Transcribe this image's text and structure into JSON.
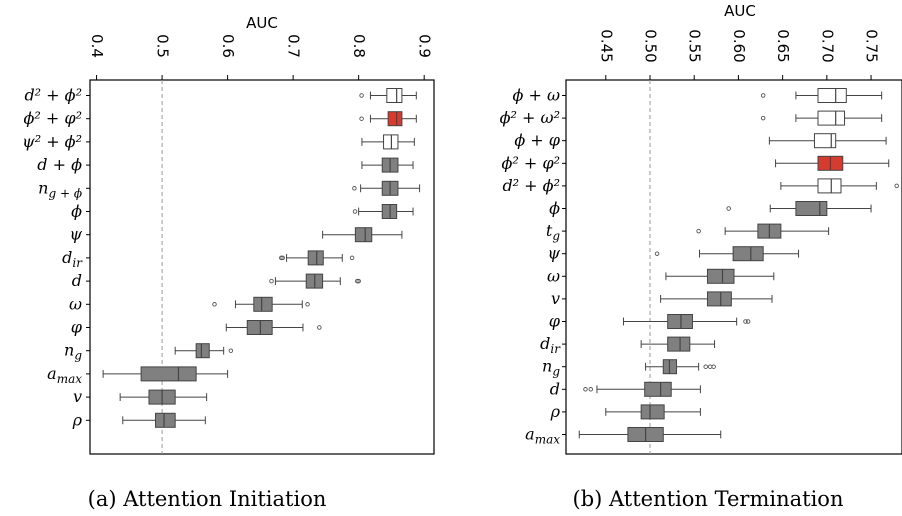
{
  "captions": [
    "(a) Attention Initiation",
    "(b) Attention Termination"
  ],
  "colors": {
    "highlight": "#d63b2f",
    "gray": "#808080",
    "white": "#ffffff",
    "ref_line": "#999999"
  },
  "chart_data": [
    {
      "type": "box",
      "title": "",
      "xlabel": "AUC",
      "ylabel": "",
      "xlim": [
        0.39,
        0.915
      ],
      "ticks": [
        0.4,
        0.5,
        0.6,
        0.7,
        0.8,
        0.9
      ],
      "tick_labels": [
        "0.4",
        "0.5",
        "0.6",
        "0.7",
        "0.8",
        "0.9"
      ],
      "reference_line": 0.5,
      "categories": [
        {
          "label": "d² + ϕ²",
          "style": "white",
          "wlo": 0.818,
          "q1": 0.843,
          "med": 0.858,
          "q3": 0.866,
          "whi": 0.888,
          "outliers": [
            0.8045
          ]
        },
        {
          "label": "ϕ² + φ²",
          "style": "highlight",
          "wlo": 0.818,
          "q1": 0.845,
          "med": 0.858,
          "q3": 0.866,
          "whi": 0.888,
          "outliers": [
            0.8045
          ]
        },
        {
          "label": "ψ² + ϕ²",
          "style": "white",
          "wlo": 0.805,
          "q1": 0.838,
          "med": 0.85,
          "q3": 0.86,
          "whi": 0.885,
          "outliers": []
        },
        {
          "label": "d + ϕ",
          "style": "gray",
          "wlo": 0.805,
          "q1": 0.836,
          "med": 0.848,
          "q3": 0.86,
          "whi": 0.883,
          "outliers": []
        },
        {
          "label": "n_g + ϕ",
          "style": "gray",
          "wlo": 0.803,
          "q1": 0.836,
          "med": 0.848,
          "q3": 0.86,
          "whi": 0.893,
          "outliers": [
            0.7935
          ]
        },
        {
          "label": "ϕ",
          "style": "gray",
          "wlo": 0.8,
          "q1": 0.836,
          "med": 0.848,
          "q3": 0.858,
          "whi": 0.883,
          "outliers": [
            0.7945
          ]
        },
        {
          "label": "ψ",
          "style": "gray",
          "wlo": 0.745,
          "q1": 0.795,
          "med": 0.81,
          "q3": 0.82,
          "whi": 0.866,
          "outliers": []
        },
        {
          "label": "d_ir",
          "style": "gray",
          "wlo": 0.69,
          "q1": 0.723,
          "med": 0.736,
          "q3": 0.746,
          "whi": 0.775,
          "outliers": [
            0.682,
            0.684,
            0.79
          ]
        },
        {
          "label": "d",
          "style": "gray",
          "wlo": 0.673,
          "q1": 0.72,
          "med": 0.733,
          "q3": 0.745,
          "whi": 0.772,
          "outliers": [
            0.667,
            0.798,
            0.8
          ]
        },
        {
          "label": "ω",
          "style": "gray",
          "wlo": 0.612,
          "q1": 0.64,
          "med": 0.652,
          "q3": 0.668,
          "whi": 0.714,
          "outliers": [
            0.58,
            0.722
          ]
        },
        {
          "label": "φ",
          "style": "gray",
          "wlo": 0.598,
          "q1": 0.63,
          "med": 0.65,
          "q3": 0.668,
          "whi": 0.715,
          "outliers": [
            0.74
          ]
        },
        {
          "label": "n_g",
          "style": "gray",
          "wlo": 0.52,
          "q1": 0.552,
          "med": 0.56,
          "q3": 0.572,
          "whi": 0.594,
          "outliers": [
            0.605
          ]
        },
        {
          "label": "a_max",
          "style": "gray",
          "wlo": 0.41,
          "q1": 0.468,
          "med": 0.525,
          "q3": 0.552,
          "whi": 0.6,
          "outliers": []
        },
        {
          "label": "v",
          "style": "gray",
          "wlo": 0.436,
          "q1": 0.48,
          "med": 0.5,
          "q3": 0.52,
          "whi": 0.568,
          "outliers": []
        },
        {
          "label": "ρ",
          "style": "gray",
          "wlo": 0.44,
          "q1": 0.49,
          "med": 0.503,
          "q3": 0.52,
          "whi": 0.566,
          "outliers": []
        }
      ]
    },
    {
      "type": "box",
      "title": "",
      "xlabel": "AUC",
      "ylabel": "",
      "xlim": [
        0.405,
        0.785
      ],
      "ticks": [
        0.45,
        0.5,
        0.55,
        0.6,
        0.65,
        0.7,
        0.75
      ],
      "tick_labels": [
        "0.45",
        "0.50",
        "0.55",
        "0.60",
        "0.65",
        "0.70",
        "0.75"
      ],
      "reference_line": 0.5,
      "categories": [
        {
          "label": "ϕ + ω",
          "style": "white",
          "wlo": 0.665,
          "q1": 0.69,
          "med": 0.71,
          "q3": 0.722,
          "whi": 0.762,
          "outliers": [
            0.628
          ]
        },
        {
          "label": "ϕ² + ω²",
          "style": "white",
          "wlo": 0.665,
          "q1": 0.69,
          "med": 0.71,
          "q3": 0.72,
          "whi": 0.762,
          "outliers": [
            0.628
          ]
        },
        {
          "label": "ϕ + φ",
          "style": "white",
          "wlo": 0.635,
          "q1": 0.686,
          "med": 0.705,
          "q3": 0.71,
          "whi": 0.767,
          "outliers": []
        },
        {
          "label": "ϕ² + φ²",
          "style": "highlight",
          "wlo": 0.642,
          "q1": 0.69,
          "med": 0.704,
          "q3": 0.718,
          "whi": 0.77,
          "outliers": []
        },
        {
          "label": "d² + ϕ²",
          "style": "white",
          "wlo": 0.648,
          "q1": 0.69,
          "med": 0.705,
          "q3": 0.716,
          "whi": 0.756,
          "outliers": [
            0.779
          ]
        },
        {
          "label": "ϕ",
          "style": "gray",
          "wlo": 0.636,
          "q1": 0.665,
          "med": 0.692,
          "q3": 0.7,
          "whi": 0.75,
          "outliers": [
            0.589
          ]
        },
        {
          "label": "t_g",
          "style": "gray",
          "wlo": 0.585,
          "q1": 0.622,
          "med": 0.635,
          "q3": 0.648,
          "whi": 0.702,
          "outliers": [
            0.555
          ]
        },
        {
          "label": "ψ",
          "style": "gray",
          "wlo": 0.556,
          "q1": 0.594,
          "med": 0.614,
          "q3": 0.628,
          "whi": 0.668,
          "outliers": [
            0.508
          ]
        },
        {
          "label": "ω",
          "style": "gray",
          "wlo": 0.518,
          "q1": 0.565,
          "med": 0.582,
          "q3": 0.595,
          "whi": 0.64,
          "outliers": []
        },
        {
          "label": "v",
          "style": "gray",
          "wlo": 0.512,
          "q1": 0.565,
          "med": 0.58,
          "q3": 0.592,
          "whi": 0.638,
          "outliers": []
        },
        {
          "label": "φ",
          "style": "gray",
          "wlo": 0.47,
          "q1": 0.52,
          "med": 0.535,
          "q3": 0.548,
          "whi": 0.598,
          "outliers": [
            0.608,
            0.611
          ]
        },
        {
          "label": "d_ir",
          "style": "gray",
          "wlo": 0.49,
          "q1": 0.52,
          "med": 0.534,
          "q3": 0.545,
          "whi": 0.573,
          "outliers": []
        },
        {
          "label": "n_g",
          "style": "gray",
          "wlo": 0.495,
          "q1": 0.515,
          "med": 0.522,
          "q3": 0.53,
          "whi": 0.555,
          "outliers": [
            0.563,
            0.568,
            0.572
          ]
        },
        {
          "label": "d",
          "style": "gray",
          "wlo": 0.44,
          "q1": 0.494,
          "med": 0.512,
          "q3": 0.524,
          "whi": 0.557,
          "outliers": [
            0.427,
            0.433
          ]
        },
        {
          "label": "ρ",
          "style": "gray",
          "wlo": 0.45,
          "q1": 0.49,
          "med": 0.5,
          "q3": 0.516,
          "whi": 0.557,
          "outliers": []
        },
        {
          "label": "a_max",
          "style": "gray",
          "wlo": 0.42,
          "q1": 0.475,
          "med": 0.495,
          "q3": 0.515,
          "whi": 0.58,
          "outliers": []
        }
      ]
    }
  ]
}
